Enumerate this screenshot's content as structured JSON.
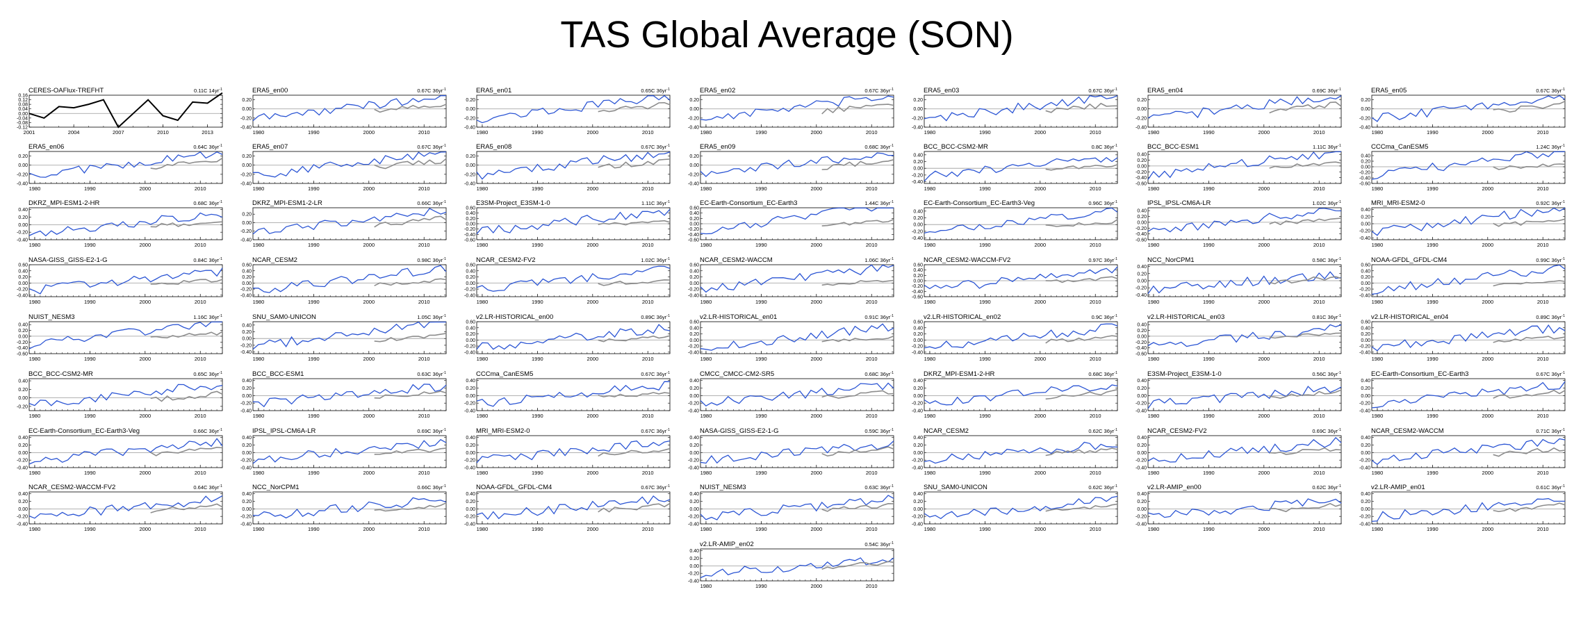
{
  "title": "TAS Global Average (SON)",
  "colors": {
    "model": "#2b55d4",
    "obs": "#8c8c8c",
    "obs_panel": "#000000",
    "zero": "#999999"
  },
  "x_ticks_default": [
    "1980",
    "1990",
    "2000",
    "2010"
  ],
  "x_ticks_obs": [
    "2001",
    "2004",
    "2007",
    "2010",
    "2013"
  ],
  "chart_data": [
    {
      "type": "line",
      "title": "CERES-OAFlux-TREFHT",
      "trend": "0.11C 14yr",
      "x": [
        2001,
        2002,
        2003,
        2004,
        2005,
        2006,
        2007,
        2008,
        2009,
        2010,
        2011,
        2012,
        2013,
        2014
      ],
      "values": [
        0.0,
        -0.04,
        0.06,
        0.05,
        0.08,
        0.12,
        -0.12,
        0.0,
        0.12,
        -0.02,
        -0.06,
        0.1,
        0.09,
        0.18
      ],
      "yticks": [
        "0.16",
        "0.12",
        "0.08",
        "0.04",
        "0.00",
        "-0.04",
        "-0.08",
        "-0.12"
      ],
      "ylim": [
        -0.12,
        0.16
      ],
      "xticks": [
        "2001",
        "2004",
        "2007",
        "2010",
        "2013"
      ]
    },
    {
      "type": "line",
      "title": "ERA5_en00",
      "trend": "0.67C 36yr",
      "yticks": [
        "0.20",
        "0.00",
        "-0.20",
        "-0.40"
      ],
      "ylim": [
        -0.4,
        0.3
      ]
    },
    {
      "type": "line",
      "title": "ERA5_en01",
      "trend": "0.65C 36yr",
      "yticks": [
        "0.20",
        "0.00",
        "-0.20",
        "-0.40"
      ],
      "ylim": [
        -0.4,
        0.3
      ]
    },
    {
      "type": "line",
      "title": "ERA5_en02",
      "trend": "0.67C 36yr",
      "yticks": [
        "0.20",
        "0.00",
        "-0.20",
        "-0.40"
      ],
      "ylim": [
        -0.4,
        0.3
      ]
    },
    {
      "type": "line",
      "title": "ERA5_en03",
      "trend": "0.67C 36yr",
      "yticks": [
        "0.20",
        "0.00",
        "-0.20",
        "-0.40"
      ],
      "ylim": [
        -0.4,
        0.3
      ]
    },
    {
      "type": "line",
      "title": "ERA5_en04",
      "trend": "0.69C 36yr",
      "yticks": [
        "0.20",
        "0.00",
        "-0.20",
        "-0.40"
      ],
      "ylim": [
        -0.4,
        0.3
      ]
    },
    {
      "type": "line",
      "title": "ERA5_en05",
      "trend": "0.67C 36yr",
      "yticks": [
        "0.20",
        "0.00",
        "-0.20",
        "-0.40"
      ],
      "ylim": [
        -0.4,
        0.3
      ]
    },
    {
      "type": "line",
      "title": "ERA5_en06",
      "trend": "0.64C 36yr",
      "yticks": [
        "0.20",
        "0.00",
        "-0.20",
        "-0.40"
      ],
      "ylim": [
        -0.4,
        0.3
      ]
    },
    {
      "type": "line",
      "title": "ERA5_en07",
      "trend": "0.67C 36yr",
      "yticks": [
        "0.20",
        "0.00",
        "-0.20",
        "-0.40"
      ],
      "ylim": [
        -0.4,
        0.3
      ]
    },
    {
      "type": "line",
      "title": "ERA5_en08",
      "trend": "0.67C 36yr",
      "yticks": [
        "0.20",
        "0.00",
        "-0.20",
        "-0.40"
      ],
      "ylim": [
        -0.4,
        0.3
      ]
    },
    {
      "type": "line",
      "title": "ERA5_en09",
      "trend": "0.68C 36yr",
      "yticks": [
        "0.20",
        "0.00",
        "-0.20",
        "-0.40"
      ],
      "ylim": [
        -0.4,
        0.3
      ]
    },
    {
      "type": "line",
      "title": "BCC_BCC-CSM2-MR",
      "trend": "0.8C 36yr",
      "yticks": [
        "0.40",
        "0.20",
        "0.00",
        "-0.20",
        "-0.40"
      ],
      "ylim": [
        -0.45,
        0.5
      ]
    },
    {
      "type": "line",
      "title": "BCC_BCC-ESM1",
      "trend": "1.11C 36yr",
      "yticks": [
        "0.40",
        "0.20",
        "0.00",
        "-0.20",
        "-0.40",
        "-0.60"
      ],
      "ylim": [
        -0.6,
        0.5
      ]
    },
    {
      "type": "line",
      "title": "CCCma_CanESM5",
      "trend": "1.24C 36yr",
      "yticks": [
        "0.40",
        "0.20",
        "0.00",
        "-0.20",
        "-0.40",
        "-0.60"
      ],
      "ylim": [
        -0.6,
        0.55
      ]
    },
    {
      "type": "line",
      "title": "DKRZ_MPI-ESM1-2-HR",
      "trend": "0.68C 36yr",
      "yticks": [
        "0.40",
        "0.20",
        "0.00",
        "-0.20",
        "-0.40"
      ],
      "ylim": [
        -0.4,
        0.45
      ]
    },
    {
      "type": "line",
      "title": "DKRZ_MPI-ESM1-2-LR",
      "trend": "0.66C 36yr",
      "yticks": [
        "0.20",
        "0.00",
        "-0.20",
        "-0.40"
      ],
      "ylim": [
        -0.4,
        0.35
      ]
    },
    {
      "type": "line",
      "title": "E3SM-Project_E3SM-1-0",
      "trend": "1.11C 36yr",
      "yticks": [
        "0.60",
        "0.40",
        "0.20",
        "0.00",
        "-0.20",
        "-0.40",
        "-0.60"
      ],
      "ylim": [
        -0.6,
        0.6
      ]
    },
    {
      "type": "line",
      "title": "EC-Earth-Consortium_EC-Earth3",
      "trend": "1.44C 36yr",
      "yticks": [
        "0.60",
        "0.40",
        "0.20",
        "0.00",
        "-0.20",
        "-0.40",
        "-0.60"
      ],
      "ylim": [
        -0.6,
        0.6
      ]
    },
    {
      "type": "line",
      "title": "EC-Earth-Consortium_EC-Earth3-Veg",
      "trend": "0.96C 36yr",
      "yticks": [
        "0.40",
        "0.20",
        "0.00",
        "-0.20",
        "-0.40"
      ],
      "ylim": [
        -0.45,
        0.5
      ]
    },
    {
      "type": "line",
      "title": "IPSL_IPSL-CM6A-LR",
      "trend": "1.02C 36yr",
      "yticks": [
        "0.40",
        "0.20",
        "0.00",
        "-0.20",
        "-0.40",
        "-0.60"
      ],
      "ylim": [
        -0.6,
        0.5
      ]
    },
    {
      "type": "line",
      "title": "MRI_MRI-ESM2-0",
      "trend": "0.92C 36yr",
      "yticks": [
        "0.40",
        "0.20",
        "0.00",
        "-0.20",
        "-0.40"
      ],
      "ylim": [
        -0.45,
        0.45
      ]
    },
    {
      "type": "line",
      "title": "NASA-GISS_GISS-E2-1-G",
      "trend": "0.84C 36yr",
      "yticks": [
        "0.60",
        "0.40",
        "0.20",
        "0.00",
        "-0.20",
        "-0.40"
      ],
      "ylim": [
        -0.45,
        0.6
      ]
    },
    {
      "type": "line",
      "title": "NCAR_CESM2",
      "trend": "0.98C 36yr",
      "yticks": [
        "0.60",
        "0.40",
        "0.20",
        "0.00",
        "-0.20",
        "-0.40"
      ],
      "ylim": [
        -0.45,
        0.6
      ]
    },
    {
      "type": "line",
      "title": "NCAR_CESM2-FV2",
      "trend": "1.02C 36yr",
      "yticks": [
        "0.60",
        "0.40",
        "0.20",
        "0.00",
        "-0.20",
        "-0.40"
      ],
      "ylim": [
        -0.45,
        0.6
      ]
    },
    {
      "type": "line",
      "title": "NCAR_CESM2-WACCM",
      "trend": "1.06C 36yr",
      "yticks": [
        "0.60",
        "0.40",
        "0.20",
        "0.00",
        "-0.20",
        "-0.40"
      ],
      "ylim": [
        -0.45,
        0.6
      ]
    },
    {
      "type": "line",
      "title": "NCAR_CESM2-WACCM-FV2",
      "trend": "0.97C 36yr",
      "yticks": [
        "0.60",
        "0.40",
        "0.20",
        "0.00",
        "-0.20",
        "-0.40",
        "-0.60"
      ],
      "ylim": [
        -0.6,
        0.6
      ]
    },
    {
      "type": "line",
      "title": "NCC_NorCPM1",
      "trend": "0.58C 36yr",
      "yticks": [
        "0.40",
        "0.20",
        "0.00",
        "-0.20",
        "-0.40"
      ],
      "ylim": [
        -0.45,
        0.45
      ]
    },
    {
      "type": "line",
      "title": "NOAA-GFDL_GFDL-CM4",
      "trend": "0.99C 36yr",
      "yticks": [
        "0.60",
        "0.40",
        "0.20",
        "0.00",
        "-0.20",
        "-0.40"
      ],
      "ylim": [
        -0.45,
        0.6
      ]
    },
    {
      "type": "line",
      "title": "NUIST_NESM3",
      "trend": "1.16C 36yr",
      "yticks": [
        "0.40",
        "0.20",
        "0.00",
        "-0.20",
        "-0.40",
        "-0.60"
      ],
      "ylim": [
        -0.6,
        0.5
      ]
    },
    {
      "type": "line",
      "title": "SNU_SAM0-UNICON",
      "trend": "1.05C 36yr",
      "yticks": [
        "0.40",
        "0.20",
        "0.00",
        "-0.20",
        "-0.40"
      ],
      "ylim": [
        -0.45,
        0.5
      ]
    },
    {
      "type": "line",
      "title": "v2.LR-HISTORICAL_en00",
      "trend": "0.89C 36yr",
      "yticks": [
        "0.60",
        "0.40",
        "0.20",
        "0.00",
        "-0.20",
        "-0.40"
      ],
      "ylim": [
        -0.45,
        0.6
      ]
    },
    {
      "type": "line",
      "title": "v2.LR-HISTORICAL_en01",
      "trend": "0.91C 36yr",
      "yticks": [
        "0.60",
        "0.40",
        "0.20",
        "0.00",
        "-0.20",
        "-0.40"
      ],
      "ylim": [
        -0.45,
        0.6
      ]
    },
    {
      "type": "line",
      "title": "v2.LR-HISTORICAL_en02",
      "trend": "0.9C 36yr",
      "yticks": [
        "0.60",
        "0.40",
        "0.20",
        "0.00",
        "-0.20",
        "-0.40"
      ],
      "ylim": [
        -0.45,
        0.6
      ]
    },
    {
      "type": "line",
      "title": "v2.LR-HISTORICAL_en03",
      "trend": "0.81C 36yr",
      "yticks": [
        "0.40",
        "0.20",
        "0.00",
        "-0.20",
        "-0.40",
        "-0.60"
      ],
      "ylim": [
        -0.6,
        0.5
      ]
    },
    {
      "type": "line",
      "title": "v2.LR-HISTORICAL_en04",
      "trend": "0.89C 36yr",
      "yticks": [
        "0.60",
        "0.40",
        "0.20",
        "0.00",
        "-0.20",
        "-0.40"
      ],
      "ylim": [
        -0.45,
        0.6
      ]
    },
    {
      "type": "line",
      "title": "BCC_BCC-CSM2-MR",
      "trend": "0.65C 36yr",
      "yticks": [
        "0.40",
        "0.20",
        "0.00",
        "-0.20"
      ],
      "ylim": [
        -0.3,
        0.45
      ]
    },
    {
      "type": "line",
      "title": "BCC_BCC-ESM1",
      "trend": "0.63C 36yr",
      "yticks": [
        "0.40",
        "0.20",
        "0.00",
        "-0.20",
        "-0.40"
      ],
      "ylim": [
        -0.4,
        0.45
      ]
    },
    {
      "type": "line",
      "title": "CCCma_CanESM5",
      "trend": "0.67C 36yr",
      "yticks": [
        "0.40",
        "0.20",
        "0.00",
        "-0.20",
        "-0.40"
      ],
      "ylim": [
        -0.4,
        0.45
      ]
    },
    {
      "type": "line",
      "title": "CMCC_CMCC-CM2-SR5",
      "trend": "0.68C 36yr",
      "yticks": [
        "0.40",
        "0.20",
        "0.00",
        "-0.20",
        "-0.40"
      ],
      "ylim": [
        -0.4,
        0.45
      ]
    },
    {
      "type": "line",
      "title": "DKRZ_MPI-ESM1-2-HR",
      "trend": "0.68C 36yr",
      "yticks": [
        "0.40",
        "0.20",
        "0.00",
        "-0.20",
        "-0.40"
      ],
      "ylim": [
        -0.4,
        0.45
      ]
    },
    {
      "type": "line",
      "title": "E3SM-Project_E3SM-1-0",
      "trend": "0.56C 36yr",
      "yticks": [
        "0.40",
        "0.20",
        "0.00",
        "-0.20",
        "-0.40"
      ],
      "ylim": [
        -0.4,
        0.45
      ]
    },
    {
      "type": "line",
      "title": "EC-Earth-Consortium_EC-Earth3",
      "trend": "0.67C 36yr",
      "yticks": [
        "0.40",
        "0.20",
        "0.00",
        "-0.20",
        "-0.40"
      ],
      "ylim": [
        -0.4,
        0.45
      ]
    },
    {
      "type": "line",
      "title": "EC-Earth-Consortium_EC-Earth3-Veg",
      "trend": "0.66C 36yr",
      "yticks": [
        "0.40",
        "0.20",
        "0.00",
        "-0.20",
        "-0.40"
      ],
      "ylim": [
        -0.4,
        0.45
      ]
    },
    {
      "type": "line",
      "title": "IPSL_IPSL-CM6A-LR",
      "trend": "0.69C 36yr",
      "yticks": [
        "0.40",
        "0.20",
        "0.00",
        "-0.20",
        "-0.40"
      ],
      "ylim": [
        -0.4,
        0.45
      ]
    },
    {
      "type": "line",
      "title": "MRI_MRI-ESM2-0",
      "trend": "0.67C 36yr",
      "yticks": [
        "0.40",
        "0.20",
        "0.00",
        "-0.20",
        "-0.40"
      ],
      "ylim": [
        -0.4,
        0.45
      ]
    },
    {
      "type": "line",
      "title": "NASA-GISS_GISS-E2-1-G",
      "trend": "0.59C 36yr",
      "yticks": [
        "0.40",
        "0.20",
        "0.00",
        "-0.20",
        "-0.40"
      ],
      "ylim": [
        -0.4,
        0.45
      ]
    },
    {
      "type": "line",
      "title": "NCAR_CESM2",
      "trend": "0.62C 36yr",
      "yticks": [
        "0.40",
        "0.20",
        "0.00",
        "-0.20",
        "-0.40"
      ],
      "ylim": [
        -0.4,
        0.45
      ]
    },
    {
      "type": "line",
      "title": "NCAR_CESM2-FV2",
      "trend": "0.69C 36yr",
      "yticks": [
        "0.40",
        "0.20",
        "0.00",
        "-0.20",
        "-0.40"
      ],
      "ylim": [
        -0.4,
        0.45
      ]
    },
    {
      "type": "line",
      "title": "NCAR_CESM2-WACCM",
      "trend": "0.71C 36yr",
      "yticks": [
        "0.40",
        "0.20",
        "0.00",
        "-0.20",
        "-0.40"
      ],
      "ylim": [
        -0.4,
        0.45
      ]
    },
    {
      "type": "line",
      "title": "NCAR_CESM2-WACCM-FV2",
      "trend": "0.64C 36yr",
      "yticks": [
        "0.40",
        "0.20",
        "0.00",
        "-0.20",
        "-0.40"
      ],
      "ylim": [
        -0.4,
        0.45
      ]
    },
    {
      "type": "line",
      "title": "NCC_NorCPM1",
      "trend": "0.66C 36yr",
      "yticks": [
        "0.40",
        "0.20",
        "0.00",
        "-0.20",
        "-0.40"
      ],
      "ylim": [
        -0.4,
        0.45
      ]
    },
    {
      "type": "line",
      "title": "NOAA-GFDL_GFDL-CM4",
      "trend": "0.67C 36yr",
      "yticks": [
        "0.40",
        "0.20",
        "0.00",
        "-0.20",
        "-0.40"
      ],
      "ylim": [
        -0.4,
        0.45
      ]
    },
    {
      "type": "line",
      "title": "NUIST_NESM3",
      "trend": "0.63C 36yr",
      "yticks": [
        "0.40",
        "0.20",
        "0.00",
        "-0.20",
        "-0.40"
      ],
      "ylim": [
        -0.4,
        0.45
      ]
    },
    {
      "type": "line",
      "title": "SNU_SAM0-UNICON",
      "trend": "0.62C 36yr",
      "yticks": [
        "0.40",
        "0.20",
        "0.00",
        "-0.20",
        "-0.40"
      ],
      "ylim": [
        -0.4,
        0.45
      ]
    },
    {
      "type": "line",
      "title": "v2.LR-AMIP_en00",
      "trend": "0.62C 36yr",
      "yticks": [
        "0.40",
        "0.20",
        "0.00",
        "-0.20",
        "-0.40"
      ],
      "ylim": [
        -0.4,
        0.45
      ]
    },
    {
      "type": "line",
      "title": "v2.LR-AMIP_en01",
      "trend": "0.61C 36yr",
      "yticks": [
        "0.40",
        "0.20",
        "0.00",
        "-0.20",
        "-0.40"
      ],
      "ylim": [
        -0.4,
        0.45
      ]
    },
    {
      "type": "line",
      "title": "v2.LR-AMIP_en02",
      "trend": "0.54C 36yr",
      "yticks": [
        "0.40",
        "0.20",
        "0.00",
        "-0.20",
        "-0.40"
      ],
      "ylim": [
        -0.4,
        0.45
      ]
    }
  ]
}
